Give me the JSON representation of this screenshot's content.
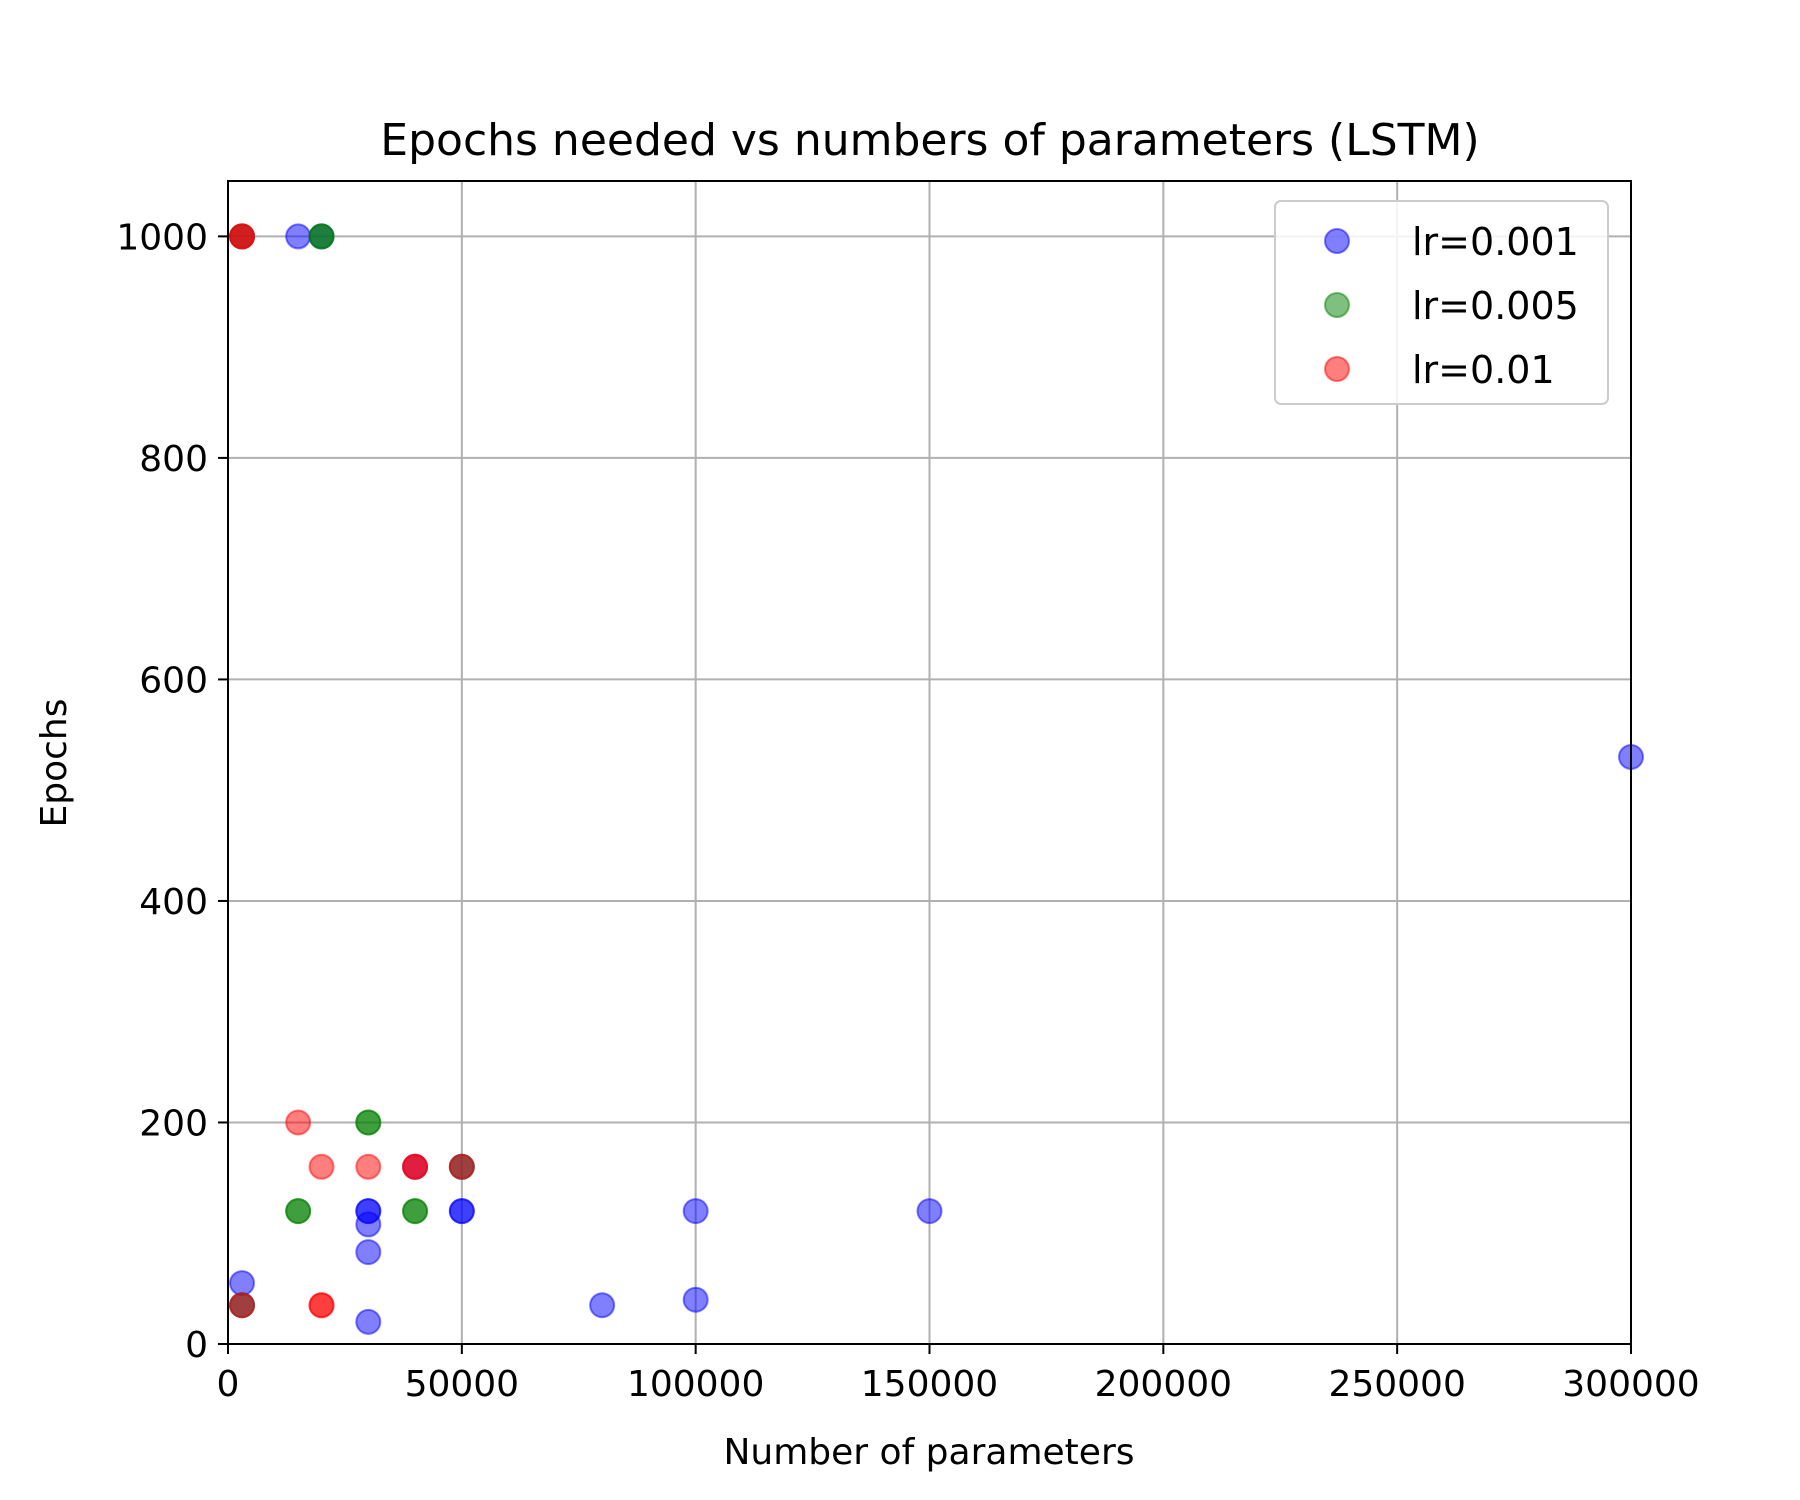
{
  "chart_data": {
    "type": "scatter",
    "title": "Epochs needed vs numbers of parameters (LSTM)",
    "xlabel": "Number of parameters",
    "ylabel": "Epochs",
    "xlim": [
      0,
      300000
    ],
    "ylim": [
      0,
      1050
    ],
    "xticks": [
      0,
      50000,
      100000,
      150000,
      200000,
      250000,
      300000
    ],
    "xtick_labels": [
      "0",
      "50000",
      "100000",
      "150000",
      "200000",
      "250000",
      "300000"
    ],
    "yticks": [
      0,
      200,
      400,
      600,
      800,
      1000
    ],
    "ytick_labels": [
      "0",
      "200",
      "400",
      "600",
      "800",
      "1000"
    ],
    "grid": true,
    "legend_position": "top-right",
    "series": [
      {
        "name": "lr=0.001",
        "color": "#0000ff",
        "alpha": 0.5,
        "points": [
          [
            3000,
            1000
          ],
          [
            15000,
            1000
          ],
          [
            20000,
            1000
          ],
          [
            3000,
            55
          ],
          [
            3000,
            35
          ],
          [
            30000,
            120
          ],
          [
            30000,
            120
          ],
          [
            30000,
            108
          ],
          [
            30000,
            83
          ],
          [
            30000,
            20
          ],
          [
            40000,
            160
          ],
          [
            50000,
            120
          ],
          [
            50000,
            120
          ],
          [
            50000,
            160
          ],
          [
            80000,
            35
          ],
          [
            100000,
            120
          ],
          [
            100000,
            40
          ],
          [
            150000,
            120
          ],
          [
            300000,
            530
          ]
        ]
      },
      {
        "name": "lr=0.005",
        "color": "#008000",
        "alpha": 0.5,
        "points": [
          [
            3000,
            1000
          ],
          [
            20000,
            1000
          ],
          [
            20000,
            1000
          ],
          [
            15000,
            120
          ],
          [
            15000,
            120
          ],
          [
            30000,
            200
          ],
          [
            30000,
            200
          ],
          [
            40000,
            120
          ],
          [
            40000,
            120
          ],
          [
            50000,
            160
          ],
          [
            3000,
            35
          ]
        ]
      },
      {
        "name": "lr=0.01",
        "color": "#ff0000",
        "alpha": 0.5,
        "points": [
          [
            3000,
            1000
          ],
          [
            3000,
            1000
          ],
          [
            3000,
            35
          ],
          [
            15000,
            200
          ],
          [
            20000,
            160
          ],
          [
            20000,
            35
          ],
          [
            20000,
            35
          ],
          [
            30000,
            160
          ],
          [
            40000,
            160
          ],
          [
            40000,
            160
          ],
          [
            50000,
            160
          ]
        ]
      }
    ]
  }
}
